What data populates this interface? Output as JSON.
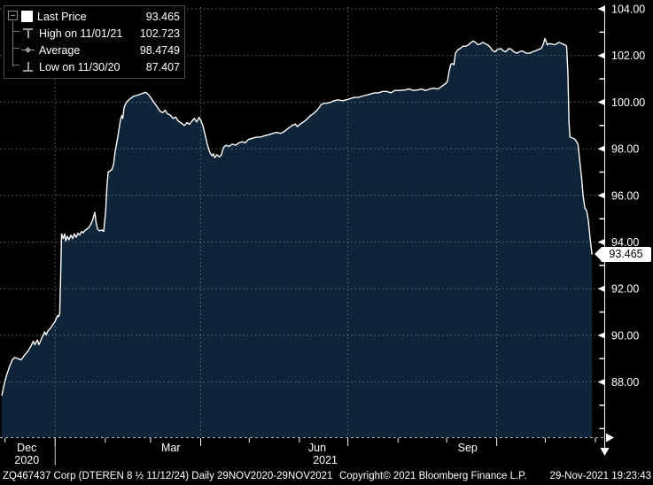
{
  "legend": {
    "collapse_icon": "minus-box",
    "items": [
      {
        "label": "Last Price",
        "value": "93.465",
        "marker": "square"
      },
      {
        "label": "High on 11/01/21",
        "value": "102.723",
        "marker": "high-whisker"
      },
      {
        "label": "Average",
        "value": "98.4749",
        "marker": "average-diamond"
      },
      {
        "label": "Low on 11/30/20",
        "value": "87.407",
        "marker": "low-whisker"
      }
    ]
  },
  "status_bar": {
    "left": "ZQ467437 Corp (DTEREN 8 ½ 11/12/24)  Daily 29NOV2020-29NOV2021",
    "copyright": "Copyright© 2021 Bloomberg Finance L.P.",
    "datetime": "29-Nov-2021 19:23:43"
  },
  "chart_data": {
    "type": "area",
    "title": "ZQ467437 Corp (DTEREN 8 ½ 11/12/24) Last Price, Daily",
    "x_range": {
      "start": "29NOV2020",
      "end": "29NOV2021",
      "days": 367
    },
    "ylim": [
      85.7,
      104.3
    ],
    "grid": true,
    "legend_position": "top-left",
    "colors": {
      "fill": "#0e2438",
      "line": "#ffffff",
      "grid": "#707a85",
      "axis": "#9fb2c4",
      "text": "#ffffff"
    },
    "y_axis": {
      "labeled_ticks": [
        88,
        90,
        92,
        94,
        96,
        98,
        100,
        102,
        104
      ],
      "minor_ticks": [
        86,
        87,
        89,
        91,
        93,
        95,
        97,
        99,
        101,
        103
      ],
      "last_price": 93.465
    },
    "x_axis": {
      "month_tick_days": [
        2,
        33,
        64,
        92,
        123,
        153,
        184,
        214,
        245,
        275,
        306,
        336,
        367
      ],
      "quarter_gridline_days": [
        33,
        123,
        214,
        306
      ],
      "year_divider_day": 33,
      "month_labels": [
        {
          "text": "Dec",
          "day": 15.5
        },
        {
          "text": "Mar",
          "day": 104.5
        },
        {
          "text": "Jun",
          "day": 195
        },
        {
          "text": "Sep",
          "day": 288
        }
      ],
      "year_labels": [
        {
          "text": "2020",
          "day": 15.5
        },
        {
          "text": "2021",
          "day": 200
        }
      ]
    },
    "stats": {
      "last": 93.465,
      "high": 102.723,
      "high_date": "11/01/21",
      "average": 98.4749,
      "low": 87.407,
      "low_date": "11/30/20"
    },
    "series": [
      {
        "name": "Last Price",
        "points": [
          [
            0,
            87.407
          ],
          [
            1.5,
            87.9
          ],
          [
            3,
            88.3
          ],
          [
            5,
            88.7
          ],
          [
            6.5,
            88.95
          ],
          [
            8,
            89.05
          ],
          [
            10,
            89.0
          ],
          [
            12,
            88.95
          ],
          [
            14,
            89.15
          ],
          [
            16,
            89.3
          ],
          [
            18.5,
            89.6
          ],
          [
            19.5,
            89.75
          ],
          [
            20.5,
            89.6
          ],
          [
            22,
            89.8
          ],
          [
            23,
            89.6
          ],
          [
            24.5,
            89.85
          ],
          [
            25.5,
            90.0
          ],
          [
            26.5,
            90.15
          ],
          [
            27.5,
            90.02
          ],
          [
            28.5,
            90.18
          ],
          [
            30,
            90.3
          ],
          [
            31.5,
            90.45
          ],
          [
            33,
            90.6
          ],
          [
            34.5,
            90.85
          ],
          [
            35.2,
            90.8
          ],
          [
            35.8,
            90.95
          ],
          [
            36.4,
            92.6
          ],
          [
            37,
            94.35
          ],
          [
            38,
            94.15
          ],
          [
            38.9,
            94.35
          ],
          [
            39.6,
            94.05
          ],
          [
            40.6,
            94.25
          ],
          [
            41.6,
            94.1
          ],
          [
            42.7,
            94.3
          ],
          [
            43.8,
            94.15
          ],
          [
            44.9,
            94.35
          ],
          [
            46,
            94.2
          ],
          [
            47.1,
            94.38
          ],
          [
            48.2,
            94.3
          ],
          [
            49.3,
            94.45
          ],
          [
            50.4,
            94.4
          ],
          [
            51.5,
            94.5
          ],
          [
            52.6,
            94.55
          ],
          [
            53.7,
            94.62
          ],
          [
            54.8,
            94.72
          ],
          [
            55.9,
            94.9
          ],
          [
            56.8,
            95.1
          ],
          [
            57.5,
            95.28
          ],
          [
            58.3,
            94.85
          ],
          [
            59.2,
            94.55
          ],
          [
            60.5,
            94.48
          ],
          [
            61.8,
            94.52
          ],
          [
            63,
            94.45
          ],
          [
            64.2,
            95.3
          ],
          [
            65,
            96.4
          ],
          [
            65.8,
            97.0
          ],
          [
            67,
            97.05
          ],
          [
            68.2,
            97.12
          ],
          [
            69.2,
            97.35
          ],
          [
            70.1,
            97.9
          ],
          [
            71.2,
            98.3
          ],
          [
            72.3,
            98.75
          ],
          [
            73.4,
            99.25
          ],
          [
            74.2,
            99.42
          ],
          [
            74.8,
            99.3
          ],
          [
            75.6,
            99.75
          ],
          [
            76.7,
            99.95
          ],
          [
            77.8,
            100.05
          ],
          [
            79.5,
            100.15
          ],
          [
            81.5,
            100.25
          ],
          [
            84,
            100.3
          ],
          [
            86.5,
            100.36
          ],
          [
            89,
            100.42
          ],
          [
            91,
            100.3
          ],
          [
            93,
            100.1
          ],
          [
            95,
            99.9
          ],
          [
            96.5,
            99.75
          ],
          [
            98,
            99.6
          ],
          [
            99.5,
            99.55
          ],
          [
            101,
            99.65
          ],
          [
            102.5,
            99.5
          ],
          [
            104,
            99.45
          ],
          [
            106,
            99.3
          ],
          [
            107.5,
            99.36
          ],
          [
            109,
            99.2
          ],
          [
            111,
            99.1
          ],
          [
            113,
            99.0
          ],
          [
            114.5,
            99.12
          ],
          [
            116,
            99.05
          ],
          [
            117.5,
            99.18
          ],
          [
            119,
            99.3
          ],
          [
            120.5,
            99.15
          ],
          [
            122,
            99.35
          ],
          [
            123.2,
            99.2
          ],
          [
            124.3,
            99.0
          ],
          [
            125.7,
            98.6
          ],
          [
            127,
            98.2
          ],
          [
            128.6,
            97.85
          ],
          [
            130,
            97.7
          ],
          [
            130.8,
            97.78
          ],
          [
            131.7,
            97.62
          ],
          [
            133,
            97.75
          ],
          [
            134.5,
            97.65
          ],
          [
            135.6,
            97.72
          ],
          [
            137,
            98.05
          ],
          [
            138.6,
            98.15
          ],
          [
            140.5,
            98.1
          ],
          [
            142.5,
            98.2
          ],
          [
            144.5,
            98.15
          ],
          [
            146.5,
            98.25
          ],
          [
            148.5,
            98.3
          ],
          [
            150.5,
            98.26
          ],
          [
            152.5,
            98.4
          ],
          [
            155,
            98.45
          ],
          [
            157.5,
            98.5
          ],
          [
            160,
            98.5
          ],
          [
            162.5,
            98.56
          ],
          [
            165,
            98.6
          ],
          [
            167.5,
            98.66
          ],
          [
            170,
            98.7
          ],
          [
            172.5,
            98.66
          ],
          [
            175,
            98.76
          ],
          [
            177.5,
            98.9
          ],
          [
            179.5,
            99.0
          ],
          [
            181.5,
            99.06
          ],
          [
            182.7,
            98.95
          ],
          [
            184.5,
            99.06
          ],
          [
            186.5,
            99.15
          ],
          [
            188.5,
            99.26
          ],
          [
            190.5,
            99.4
          ],
          [
            192.5,
            99.5
          ],
          [
            194.5,
            99.62
          ],
          [
            196,
            99.75
          ],
          [
            197.5,
            99.9
          ],
          [
            199.5,
            99.95
          ],
          [
            201.5,
            99.96
          ],
          [
            203.5,
            100.0
          ],
          [
            205.5,
            100.06
          ],
          [
            208,
            100.1
          ],
          [
            210.5,
            100.06
          ],
          [
            213,
            100.1
          ],
          [
            215.5,
            100.15
          ],
          [
            218,
            100.2
          ],
          [
            220.5,
            100.2
          ],
          [
            223,
            100.26
          ],
          [
            225.5,
            100.3
          ],
          [
            228,
            100.35
          ],
          [
            230.5,
            100.4
          ],
          [
            233,
            100.4
          ],
          [
            235.5,
            100.46
          ],
          [
            238,
            100.46
          ],
          [
            240.5,
            100.4
          ],
          [
            243,
            100.5
          ],
          [
            246,
            100.5
          ],
          [
            249,
            100.52
          ],
          [
            252,
            100.56
          ],
          [
            254.5,
            100.5
          ],
          [
            257,
            100.52
          ],
          [
            259.5,
            100.56
          ],
          [
            262,
            100.5
          ],
          [
            264.5,
            100.56
          ],
          [
            267,
            100.6
          ],
          [
            269.5,
            100.56
          ],
          [
            271.5,
            100.65
          ],
          [
            273.5,
            100.75
          ],
          [
            274.5,
            100.8
          ],
          [
            275.5,
            100.9
          ],
          [
            276.5,
            101.3
          ],
          [
            277.5,
            101.6
          ],
          [
            278.5,
            101.66
          ],
          [
            279.5,
            101.6
          ],
          [
            280.5,
            102.1
          ],
          [
            282,
            102.25
          ],
          [
            283.5,
            102.3
          ],
          [
            285,
            102.4
          ],
          [
            287,
            102.4
          ],
          [
            288.5,
            102.46
          ],
          [
            290,
            102.55
          ],
          [
            291.5,
            102.62
          ],
          [
            293,
            102.55
          ],
          [
            294.5,
            102.46
          ],
          [
            296,
            102.5
          ],
          [
            297.5,
            102.56
          ],
          [
            299,
            102.5
          ],
          [
            300.5,
            102.45
          ],
          [
            302,
            102.35
          ],
          [
            303.5,
            102.2
          ],
          [
            305,
            102.16
          ],
          [
            306.5,
            102.26
          ],
          [
            308.5,
            102.3
          ],
          [
            310,
            102.2
          ],
          [
            311.5,
            102.16
          ],
          [
            313.5,
            102.3
          ],
          [
            315,
            102.26
          ],
          [
            316.5,
            102.16
          ],
          [
            318.5,
            102.1
          ],
          [
            320,
            102.16
          ],
          [
            322,
            102.2
          ],
          [
            324,
            102.1
          ],
          [
            326.5,
            102.1
          ],
          [
            328,
            102.16
          ],
          [
            330,
            102.2
          ],
          [
            332,
            102.26
          ],
          [
            333.5,
            102.3
          ],
          [
            334.6,
            102.45
          ],
          [
            335.8,
            102.723
          ],
          [
            336.6,
            102.6
          ],
          [
            337.2,
            102.46
          ],
          [
            338.2,
            102.5
          ],
          [
            340,
            102.5
          ],
          [
            341.5,
            102.46
          ],
          [
            343,
            102.5
          ],
          [
            344.5,
            102.56
          ],
          [
            346.5,
            102.5
          ],
          [
            348,
            102.46
          ],
          [
            349.2,
            102.4
          ],
          [
            350,
            101.2
          ],
          [
            350.7,
            99.1
          ],
          [
            351.3,
            98.5
          ],
          [
            353,
            98.46
          ],
          [
            354.5,
            98.4
          ],
          [
            356.2,
            98.2
          ],
          [
            357.3,
            97.5
          ],
          [
            358.4,
            96.8
          ],
          [
            359.4,
            96.0
          ],
          [
            360.5,
            95.45
          ],
          [
            361.6,
            95.35
          ],
          [
            362.7,
            94.9
          ],
          [
            363.8,
            94.1
          ],
          [
            364.9,
            93.465
          ]
        ]
      }
    ]
  }
}
